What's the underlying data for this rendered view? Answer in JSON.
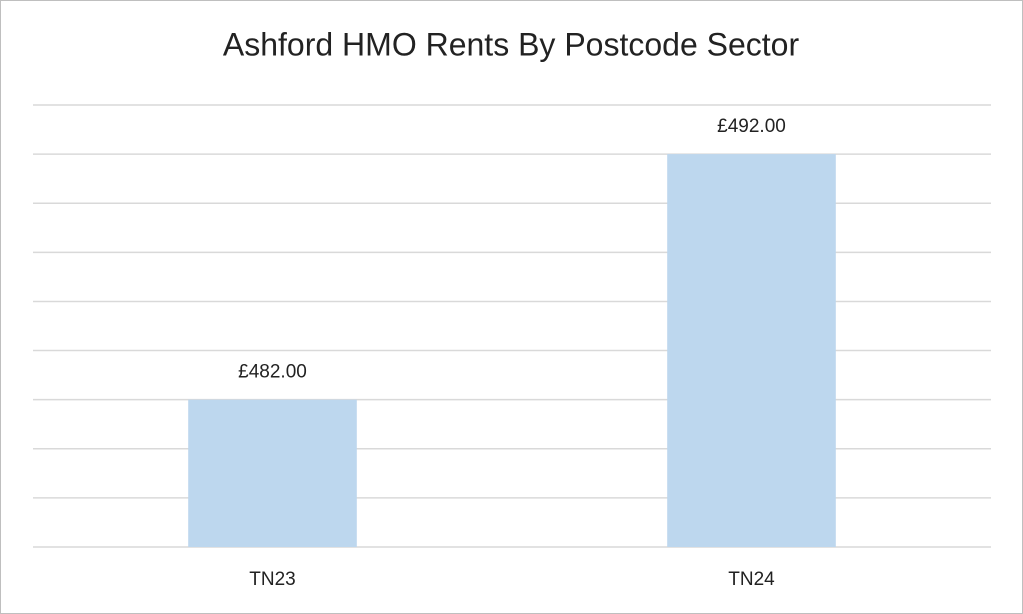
{
  "chart_data": {
    "type": "bar",
    "title": "Ashford HMO Rents By Postcode Sector",
    "categories": [
      "TN23",
      "TN24"
    ],
    "values": [
      482,
      492
    ],
    "value_labels": [
      "£482.00",
      "£492.00"
    ],
    "color": "#bdd7ee",
    "ylim": [
      476,
      494
    ],
    "yticks": [
      476,
      478,
      480,
      482,
      484,
      486,
      488,
      490,
      492,
      494
    ],
    "grid": true
  }
}
